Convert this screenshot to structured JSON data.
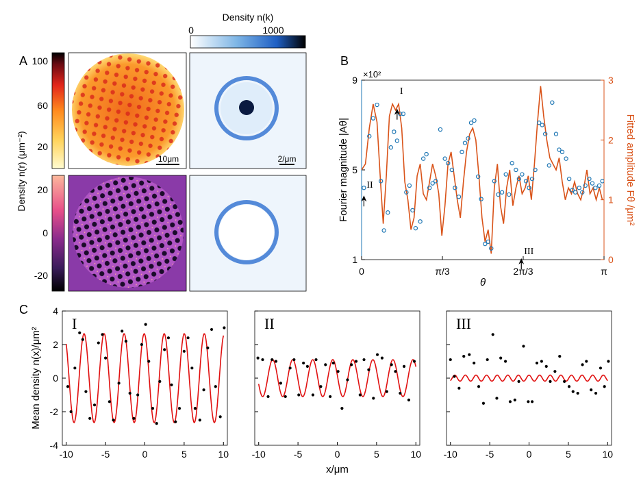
{
  "panel_labels": {
    "a": "A",
    "b": "B",
    "c": "C"
  },
  "panel_a": {
    "density_k_label": "Density n(k)",
    "density_k_ticks": [
      "0",
      "1000"
    ],
    "density_r_label": "Density n(r) (μm⁻²)",
    "real_ticks_top": [
      "100",
      "60",
      "20"
    ],
    "real_ticks_bottom": [
      "20",
      "0",
      "-20"
    ],
    "scalebar_real": "10μm",
    "scalebar_k": "2/μm",
    "colors": {
      "hot": [
        "#fffbd0",
        "#ffd25a",
        "#ff8a1e",
        "#e2261b",
        "#6b0a12",
        "#000000"
      ],
      "magma": [
        "#fcb89c",
        "#e8508a",
        "#8a2b8c",
        "#3a1c5a",
        "#000000"
      ],
      "blues": [
        "#ffffff",
        "#7fb6e6",
        "#1f5fc4",
        "#000000"
      ]
    }
  },
  "chart_data": [
    {
      "type": "line",
      "panel": "B",
      "xlabel": "θ",
      "ylabel": "Fourier magnitude |Aθ|",
      "ylabel_right": "Fitted amplitude Fθ /μm²",
      "x_tick_labels": [
        "0",
        "π/3",
        "2π/3",
        "π"
      ],
      "y_tick_labels": [
        "1",
        "5",
        "9"
      ],
      "y_multiplier": "×10²",
      "y_right_tick_labels": [
        "0",
        "1",
        "2",
        "3"
      ],
      "xlim": [
        0,
        3.1416
      ],
      "ylim": [
        1,
        9
      ],
      "ylim_right": [
        0,
        3
      ],
      "annotations": [
        "I",
        "II",
        "III"
      ],
      "series": [
        {
          "kind": "scatter",
          "axis": "left",
          "color": "#1f77b4",
          "x": [
            0.03,
            0.1,
            0.15,
            0.2,
            0.25,
            0.29,
            0.34,
            0.38,
            0.42,
            0.46,
            0.5,
            0.54,
            0.58,
            0.62,
            0.66,
            0.7,
            0.76,
            0.8,
            0.84,
            0.88,
            0.92,
            0.96,
            1.02,
            1.08,
            1.12,
            1.17,
            1.21,
            1.26,
            1.3,
            1.34,
            1.38,
            1.42,
            1.46,
            1.51,
            1.55,
            1.6,
            1.64,
            1.68,
            1.72,
            1.77,
            1.82,
            1.87,
            1.91,
            1.95,
            2.0,
            2.04,
            2.08,
            2.13,
            2.17,
            2.21,
            2.25,
            2.3,
            2.34,
            2.38,
            2.43,
            2.47,
            2.52,
            2.56,
            2.6,
            2.65,
            2.69,
            2.73,
            2.77,
            2.82,
            2.86,
            2.9,
            2.95,
            2.99,
            3.03,
            3.08,
            3.12
          ],
          "y": [
            4.2,
            6.5,
            7.3,
            7.9,
            4.5,
            2.3,
            3.1,
            6.0,
            6.7,
            6.3,
            7.5,
            7.5,
            4.0,
            4.3,
            3.2,
            2.4,
            2.7,
            5.5,
            5.7,
            4.2,
            4.4,
            4.5,
            6.8,
            5.5,
            5.3,
            5.0,
            4.2,
            3.8,
            5.8,
            6.2,
            6.4,
            7.1,
            7.2,
            4.7,
            3.7,
            1.7,
            1.8,
            1.5,
            4.5,
            3.9,
            4.0,
            4.8,
            3.9,
            5.3,
            5.0,
            4.6,
            4.8,
            4.5,
            4.2,
            4.6,
            5.0,
            7.1,
            7.0,
            6.6,
            5.2,
            8.0,
            6.6,
            5.9,
            5.8,
            5.5,
            4.6,
            4.1,
            4.0,
            4.2,
            4.0,
            4.3,
            4.6,
            4.4,
            4.2,
            4.3,
            4.5
          ]
        },
        {
          "kind": "line",
          "axis": "right",
          "color": "#d95319",
          "x": [
            0.0,
            0.05,
            0.1,
            0.15,
            0.2,
            0.25,
            0.28,
            0.32,
            0.36,
            0.4,
            0.44,
            0.48,
            0.52,
            0.56,
            0.6,
            0.64,
            0.68,
            0.72,
            0.76,
            0.8,
            0.84,
            0.88,
            0.92,
            0.96,
            1.0,
            1.04,
            1.08,
            1.12,
            1.16,
            1.2,
            1.24,
            1.28,
            1.32,
            1.36,
            1.4,
            1.44,
            1.48,
            1.52,
            1.56,
            1.6,
            1.64,
            1.68,
            1.72,
            1.76,
            1.8,
            1.84,
            1.88,
            1.92,
            1.96,
            2.0,
            2.04,
            2.08,
            2.12,
            2.16,
            2.2,
            2.24,
            2.28,
            2.32,
            2.36,
            2.4,
            2.44,
            2.48,
            2.52,
            2.56,
            2.6,
            2.64,
            2.68,
            2.72,
            2.76,
            2.8,
            2.84,
            2.88,
            2.92,
            2.96,
            3.0,
            3.04,
            3.08,
            3.12
          ],
          "y": [
            1.5,
            1.6,
            2.2,
            2.6,
            2.3,
            1.2,
            0.6,
            1.4,
            2.4,
            2.6,
            2.5,
            2.6,
            2.2,
            1.3,
            1.0,
            0.5,
            0.7,
            1.4,
            1.6,
            1.1,
            1.0,
            1.3,
            1.6,
            1.4,
            1.1,
            0.4,
            0.9,
            1.6,
            1.8,
            1.4,
            1.0,
            0.7,
            1.3,
            1.8,
            2.1,
            2.2,
            2.0,
            1.4,
            0.7,
            0.3,
            0.5,
            0.1,
            1.2,
            1.6,
            0.9,
            0.6,
            1.2,
            1.5,
            0.9,
            1.2,
            1.4,
            1.1,
            1.2,
            1.4,
            1.0,
            1.6,
            2.3,
            2.9,
            2.4,
            2.0,
            1.7,
            1.6,
            1.5,
            1.7,
            1.3,
            1.0,
            1.2,
            1.1,
            1.3,
            1.1,
            1.0,
            1.2,
            1.5,
            1.1,
            1.2,
            1.0,
            1.2,
            1.0
          ]
        }
      ]
    },
    {
      "type": "line",
      "panel": "C",
      "annotation": "I",
      "ylabel": "Mean density n(x)/μm²",
      "xlabel": "",
      "x_tick_labels": [
        "-10",
        "-5",
        "0",
        "5",
        "10"
      ],
      "y_tick_labels": [
        "-4",
        "-2",
        "0",
        "2",
        "4"
      ],
      "xlim": [
        -10.5,
        10.5
      ],
      "ylim": [
        -4,
        4
      ],
      "fit": {
        "amplitude": 2.65,
        "period": 2.55,
        "phase": 0.2
      },
      "points_x": [
        -9.8,
        -9.4,
        -8.9,
        -8.3,
        -7.9,
        -7.5,
        -7.0,
        -6.4,
        -5.9,
        -5.4,
        -5.0,
        -4.5,
        -4.0,
        -3.3,
        -2.9,
        -2.4,
        -1.9,
        -1.4,
        -0.9,
        -0.4,
        0.1,
        0.5,
        1.0,
        1.5,
        1.9,
        2.5,
        3.0,
        3.4,
        3.9,
        4.4,
        5.0,
        5.5,
        6.0,
        6.4,
        7.0,
        7.5,
        8.0,
        8.5,
        9.0,
        9.6,
        10.1
      ],
      "points_y": [
        -0.5,
        -2.0,
        0.6,
        2.7,
        2.3,
        -0.8,
        -2.4,
        -1.6,
        2.1,
        2.6,
        1.2,
        -1.4,
        -2.5,
        -0.3,
        2.8,
        2.2,
        -0.9,
        -2.4,
        -1.0,
        2.0,
        3.2,
        1.0,
        -1.8,
        -2.7,
        -0.2,
        1.7,
        2.4,
        -0.4,
        -2.6,
        -1.8,
        1.6,
        2.4,
        0.6,
        -1.8,
        -2.5,
        -0.7,
        1.8,
        2.9,
        -0.5,
        -2.3,
        3.0
      ]
    },
    {
      "type": "line",
      "panel": "C",
      "annotation": "II",
      "xlabel": "x/μm",
      "x_tick_labels": [
        "-10",
        "-5",
        "0",
        "5",
        "10"
      ],
      "xlim": [
        -10.5,
        10.5
      ],
      "ylim": [
        -4,
        4
      ],
      "fit": {
        "amplitude": 1.1,
        "period": 2.55,
        "phase": 1.4
      },
      "points_x": [
        -10.1,
        -9.5,
        -8.8,
        -8.3,
        -7.8,
        -7.2,
        -6.6,
        -6.0,
        -5.5,
        -4.9,
        -4.3,
        -3.8,
        -3.1,
        -2.7,
        -2.1,
        -1.5,
        -0.9,
        -0.5,
        0.1,
        0.6,
        1.3,
        1.8,
        2.4,
        2.9,
        3.4,
        4.0,
        4.6,
        5.1,
        5.7,
        6.3,
        6.9,
        7.4,
        8.0,
        8.5,
        9.1,
        9.8
      ],
      "points_y": [
        1.2,
        1.1,
        -1.1,
        1.1,
        1.0,
        -0.3,
        -1.1,
        0.6,
        1.1,
        -1.0,
        0.9,
        0.7,
        -1.0,
        1.1,
        -0.5,
        0.8,
        -1.1,
        0.9,
        0.4,
        -1.8,
        -0.1,
        0.8,
        1.0,
        -1.0,
        1.1,
        0.5,
        -1.2,
        1.4,
        1.2,
        -0.8,
        0.8,
        0.4,
        -0.9,
        0.7,
        -1.3,
        1.0
      ]
    },
    {
      "type": "line",
      "panel": "C",
      "annotation": "III",
      "x_tick_labels": [
        "-10",
        "-5",
        "0",
        "5",
        "10"
      ],
      "xlim": [
        -10.5,
        10.5
      ],
      "ylim": [
        -4,
        4
      ],
      "fit": {
        "amplitude": 0.18,
        "period": 1.35,
        "phase": 0.0
      },
      "points_x": [
        -10.0,
        -9.5,
        -8.9,
        -8.3,
        -7.6,
        -7.0,
        -6.4,
        -5.8,
        -5.3,
        -4.6,
        -4.1,
        -3.6,
        -3.0,
        -2.4,
        -1.8,
        -1.3,
        -0.7,
        -0.1,
        0.4,
        1.0,
        1.6,
        2.2,
        2.7,
        3.3,
        3.9,
        4.5,
        5.1,
        5.6,
        6.2,
        6.8,
        7.3,
        7.9,
        8.5,
        9.1,
        9.6,
        10.1
      ],
      "points_y": [
        1.1,
        0.1,
        -0.6,
        1.3,
        1.4,
        0.9,
        -0.5,
        -1.5,
        1.1,
        2.6,
        -1.2,
        1.2,
        1.0,
        -1.4,
        -1.3,
        -0.2,
        1.9,
        -1.4,
        -1.4,
        0.9,
        1.0,
        0.7,
        -0.2,
        0.4,
        1.3,
        -0.2,
        -0.5,
        -0.8,
        -0.9,
        0.8,
        1.0,
        -0.7,
        -0.9,
        0.6,
        -0.5,
        1.0
      ]
    }
  ]
}
